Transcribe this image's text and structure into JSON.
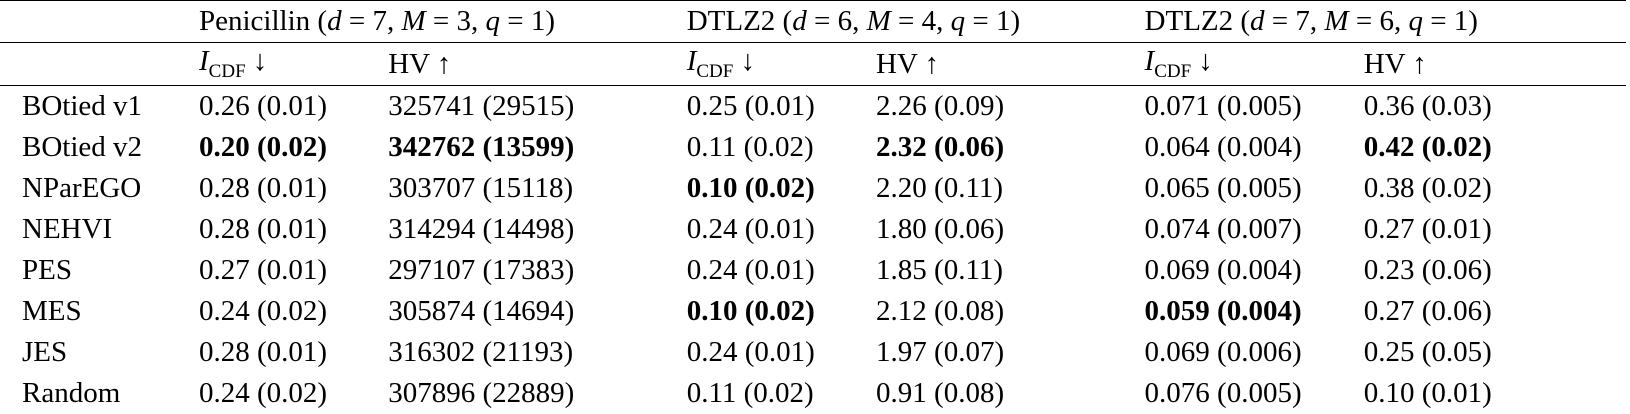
{
  "header": {
    "groups": [
      {
        "label": "Penicillin ($d = 7, M = 3, q = 1$)",
        "name": "Penicillin",
        "params": "(d = 7, M = 3, q = 1)"
      },
      {
        "label": "DTLZ2 ($d = 6, M = 4, q = 1$)",
        "name": "DTLZ2",
        "params": "(d = 6, M = 4, q = 1)"
      },
      {
        "label": "DTLZ2 ($d = 7, M = 6, q = 1$)",
        "name": "DTLZ2",
        "params": "(d = 7, M = 6, q = 1)"
      }
    ],
    "metrics": [
      {
        "symbol": "I",
        "subscript": "CDF",
        "arrow": "↓"
      },
      {
        "symbol": "HV",
        "arrow": "↑"
      },
      {
        "symbol": "I",
        "subscript": "CDF",
        "arrow": "↓"
      },
      {
        "symbol": "HV",
        "arrow": "↑"
      },
      {
        "symbol": "I",
        "subscript": "CDF",
        "arrow": "↓"
      },
      {
        "symbol": "HV",
        "arrow": "↑"
      }
    ]
  },
  "rows": [
    {
      "method": "BOtied v1",
      "cells": [
        "0.26 (0.01)",
        "325741 (29515)",
        "0.25 (0.01)",
        "2.26 (0.09)",
        "0.071 (0.005)",
        "0.36 (0.03)"
      ],
      "bold": [
        false,
        false,
        false,
        false,
        false,
        false
      ]
    },
    {
      "method": "BOtied v2",
      "cells": [
        "0.20 (0.02)",
        "342762 (13599)",
        "0.11 (0.02)",
        "2.32 (0.06)",
        "0.064 (0.004)",
        "0.42 (0.02)"
      ],
      "bold": [
        true,
        true,
        false,
        true,
        false,
        true
      ]
    },
    {
      "method": "NParEGO",
      "cells": [
        "0.28 (0.01)",
        "303707 (15118)",
        "0.10 (0.02)",
        "2.20 (0.11)",
        "0.065 (0.005)",
        "0.38 (0.02)"
      ],
      "bold": [
        false,
        false,
        true,
        false,
        false,
        false
      ]
    },
    {
      "method": "NEHVI",
      "cells": [
        "0.28 (0.01)",
        "314294 (14498)",
        "0.24 (0.01)",
        "1.80 (0.06)",
        "0.074 (0.007)",
        "0.27 (0.01)"
      ],
      "bold": [
        false,
        false,
        false,
        false,
        false,
        false
      ]
    },
    {
      "method": "PES",
      "cells": [
        "0.27 (0.01)",
        "297107 (17383)",
        "0.24 (0.01)",
        "1.85 (0.11)",
        "0.069 (0.004)",
        "0.23 (0.06)"
      ],
      "bold": [
        false,
        false,
        false,
        false,
        false,
        false
      ]
    },
    {
      "method": "MES",
      "cells": [
        "0.24 (0.02)",
        "305874 (14694)",
        "0.10 (0.02)",
        "2.12 (0.08)",
        "0.059 (0.004)",
        "0.27 (0.06)"
      ],
      "bold": [
        false,
        false,
        true,
        false,
        true,
        false
      ]
    },
    {
      "method": "JES",
      "cells": [
        "0.28 (0.01)",
        "316302 (21193)",
        "0.24 (0.01)",
        "1.97 (0.07)",
        "0.069 (0.006)",
        "0.25 (0.05)"
      ],
      "bold": [
        false,
        false,
        false,
        false,
        false,
        false
      ]
    },
    {
      "method": "Random",
      "cells": [
        "0.24 (0.02)",
        "307896 (22889)",
        "0.11 (0.02)",
        "0.91 (0.08)",
        "0.076 (0.005)",
        "0.10 (0.01)"
      ],
      "bold": [
        false,
        false,
        false,
        false,
        false,
        false
      ]
    }
  ]
}
